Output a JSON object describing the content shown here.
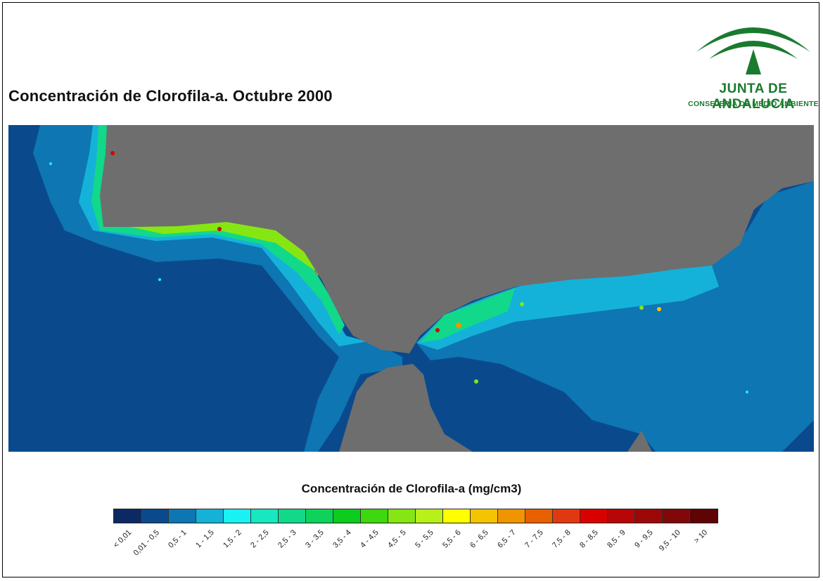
{
  "title": "Concentración de Clorofila-a. Octubre 2000",
  "logo": {
    "line1": "JUNTA DE ANDALUCIA",
    "line2": "CONSEJERÍA DE MEDIO AMBIENTE",
    "color": "#1a7a2e"
  },
  "map": {
    "land_color": "#6e6e6e",
    "deep_sea_color": "#08498a",
    "shelf_color": "#1f86bf",
    "coast_color": "#2dc3d8"
  },
  "legend": {
    "title": "Concentración de Clorofila-a (mg/cm3)",
    "classes": [
      {
        "label": "< 0,01",
        "color": "#0b2a63"
      },
      {
        "label": "0,01 - 0,5",
        "color": "#0a4a8c"
      },
      {
        "label": "0,5 - 1",
        "color": "#0e76b2"
      },
      {
        "label": "1 - 1,5",
        "color": "#14b2d9"
      },
      {
        "label": "1,5 - 2",
        "color": "#19f2f2"
      },
      {
        "label": "2 - 2,5",
        "color": "#17e8c0"
      },
      {
        "label": "2,5 - 3",
        "color": "#12d88a"
      },
      {
        "label": "3 - 3,5",
        "color": "#0fd25a"
      },
      {
        "label": "3,5 - 4",
        "color": "#0ccc1e"
      },
      {
        "label": "4 - 4,5",
        "color": "#3dd80d"
      },
      {
        "label": "4,5 - 5",
        "color": "#86e614"
      },
      {
        "label": "5 - 5,5",
        "color": "#b8f01a"
      },
      {
        "label": "5,5 - 6",
        "color": "#ffff00"
      },
      {
        "label": "6 - 6,5",
        "color": "#f5c400"
      },
      {
        "label": "6,5 - 7",
        "color": "#f09400"
      },
      {
        "label": "7 - 7,5",
        "color": "#e86000"
      },
      {
        "label": "7,5 - 8",
        "color": "#e03810"
      },
      {
        "label": "8 - 8,5",
        "color": "#d80000"
      },
      {
        "label": "8,5 - 9",
        "color": "#b80606"
      },
      {
        "label": "9 - 9,5",
        "color": "#9c0808"
      },
      {
        "label": "9,5 - 10",
        "color": "#800808"
      },
      {
        "label": "> 10",
        "color": "#5e0404"
      }
    ]
  }
}
